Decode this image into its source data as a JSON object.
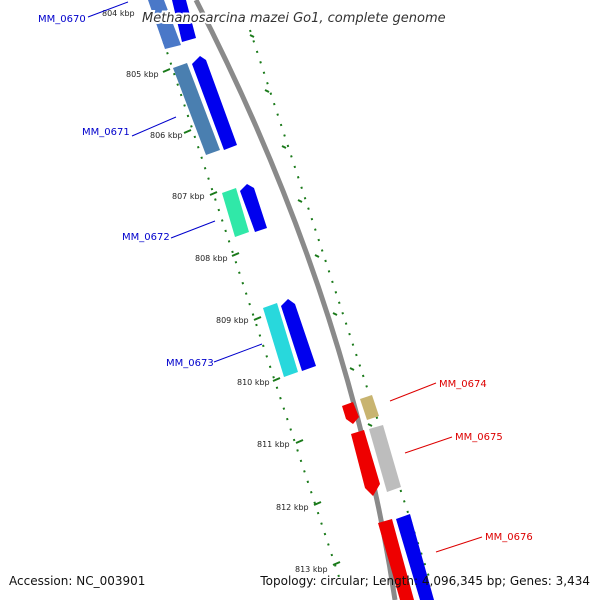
{
  "title": "Methanosarcina mazei Go1, complete genome",
  "footer": {
    "accession": "Accession: NC_003901",
    "summary": "Topology: circular; Length: 4,096,345 bp; Genes: 3,434"
  },
  "colors": {
    "backbone": "#8a8a8a",
    "tick_green": "#1a7a1a",
    "label_blue": "#0000cc",
    "label_red": "#dd0000",
    "forward": "#0000ee",
    "reverse": "#ee0000"
  },
  "kbp_ticks": [
    "804 kbp",
    "805 kbp",
    "806 kbp",
    "807 kbp",
    "808 kbp",
    "809 kbp",
    "810 kbp",
    "811 kbp",
    "812 kbp",
    "813 kbp"
  ],
  "genes_left": [
    {
      "label": "MM_0670",
      "color": "#4a78c8"
    },
    {
      "label": "MM_0671",
      "color": "#4a7fb0"
    },
    {
      "label": "MM_0672",
      "color": "#30e8a8"
    },
    {
      "label": "MM_0673",
      "color": "#28d8dc"
    }
  ],
  "genes_right": [
    {
      "label": "MM_0674",
      "color": "#c8b470"
    },
    {
      "label": "MM_0675",
      "color": "#bdbdbd"
    },
    {
      "label": "MM_0676",
      "color": "#0000ee"
    }
  ]
}
